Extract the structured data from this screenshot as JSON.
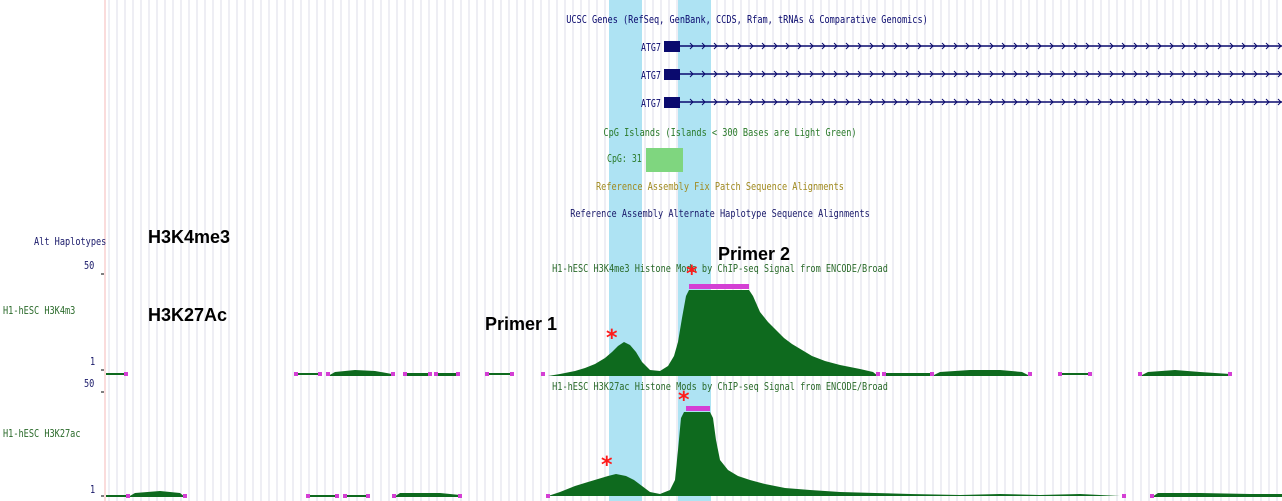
{
  "tracks": {
    "ucsc_genes": {
      "title": "UCSC Genes (RefSeq, GenBank, CCDS, Rfam, tRNAs & Comparative Genomics)",
      "gene_labels": [
        "ATG7",
        "ATG7",
        "ATG7"
      ],
      "color": "#0a0a6e"
    },
    "cpg": {
      "title": "CpG Islands (Islands < 300 Bases are Light Green)",
      "item_label": "CpG: 31",
      "color": "#7fd67f"
    },
    "fix_patch": {
      "title": "Reference Assembly Fix Patch Sequence Alignments"
    },
    "alt_haplotype": {
      "title": "Reference Assembly Alternate Haplotype Sequence Alignments",
      "side_label": "Alt Haplotypes"
    },
    "h3k4me3": {
      "title": "H1-hESC H3K4me3 Histone Mods by ChIP-seq Signal from ENCODE/Broad",
      "side_label": "H1-hESC H3K4m3",
      "axis_top": "50",
      "axis_bottom": "1",
      "color": "#0e6a1e"
    },
    "h3k27ac": {
      "title": "H1-hESC H3K27ac Histone Mods by ChIP-seq Signal from ENCODE/Broad",
      "side_label": "H1-hESC H3K27ac",
      "axis_top": "50",
      "axis_bottom": "1",
      "color": "#0e6a1e"
    }
  },
  "annotations": {
    "h3k4me3_label": "H3K4me3",
    "h3k27ac_label": "H3K27Ac",
    "primer1": "Primer 1",
    "primer2": "Primer 2",
    "marker": "*"
  },
  "colors": {
    "highlight": "#aee3f3",
    "clipped": "#d43fd4",
    "signal": "#0e6a1e"
  }
}
